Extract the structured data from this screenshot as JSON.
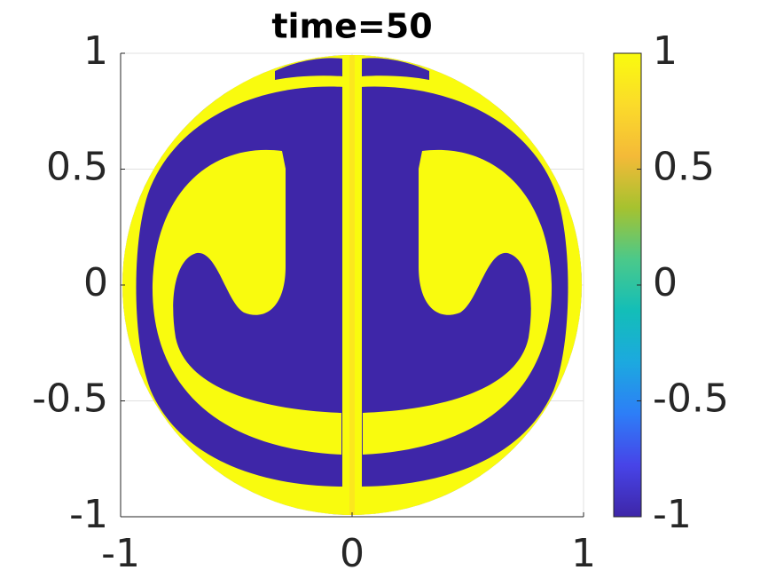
{
  "chart_data": {
    "type": "pcolor",
    "title": "time=50",
    "xlim": [
      -1,
      1
    ],
    "ylim": [
      -1,
      1
    ],
    "xticks": [
      -1,
      0,
      1
    ],
    "yticks": [
      -1,
      -0.5,
      0,
      0.5,
      1
    ],
    "grid": true,
    "colorbar": {
      "clim": [
        -1,
        1
      ],
      "ticks": [
        -1,
        -0.5,
        0,
        0.5,
        1
      ],
      "colors": [
        "#3e26a8",
        "#4744e8",
        "#2d7ef7",
        "#1ca9df",
        "#13beb8",
        "#4bc98a",
        "#a6c22f",
        "#f4ba38",
        "#fbdb2a",
        "#f9fb0e"
      ]
    }
  }
}
